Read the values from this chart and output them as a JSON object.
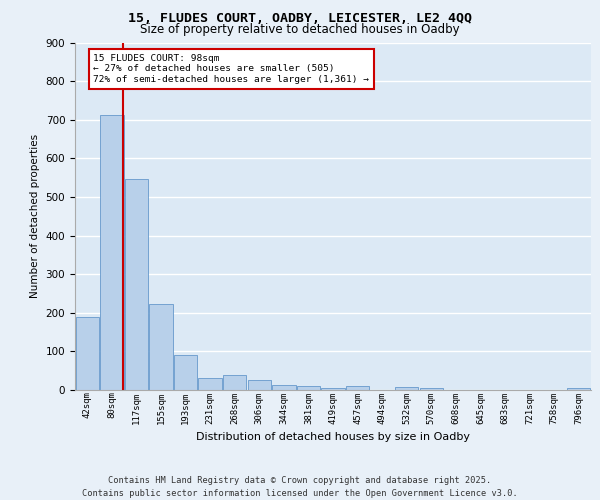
{
  "title_line1": "15, FLUDES COURT, OADBY, LEICESTER, LE2 4QQ",
  "title_line2": "Size of property relative to detached houses in Oadby",
  "xlabel": "Distribution of detached houses by size in Oadby",
  "ylabel": "Number of detached properties",
  "bar_labels": [
    "42sqm",
    "80sqm",
    "117sqm",
    "155sqm",
    "193sqm",
    "231sqm",
    "268sqm",
    "306sqm",
    "344sqm",
    "381sqm",
    "419sqm",
    "457sqm",
    "494sqm",
    "532sqm",
    "570sqm",
    "608sqm",
    "645sqm",
    "683sqm",
    "721sqm",
    "758sqm",
    "796sqm"
  ],
  "bar_values": [
    190,
    712,
    547,
    224,
    91,
    30,
    40,
    26,
    14,
    10,
    5,
    11,
    0,
    8,
    5,
    0,
    0,
    0,
    0,
    0,
    4
  ],
  "bar_color": "#b8d0ea",
  "bar_edge_color": "#6699cc",
  "annotation_text_line1": "15 FLUDES COURT: 98sqm",
  "annotation_text_line2": "← 27% of detached houses are smaller (505)",
  "annotation_text_line3": "72% of semi-detached houses are larger (1,361) →",
  "annotation_box_color": "#cc0000",
  "vline_color": "#cc0000",
  "footer_line1": "Contains HM Land Registry data © Crown copyright and database right 2025.",
  "footer_line2": "Contains public sector information licensed under the Open Government Licence v3.0.",
  "ylim": [
    0,
    900
  ],
  "yticks": [
    0,
    100,
    200,
    300,
    400,
    500,
    600,
    700,
    800,
    900
  ],
  "bg_color": "#dce9f5",
  "fig_color": "#e8f0f8",
  "grid_color": "#ffffff"
}
